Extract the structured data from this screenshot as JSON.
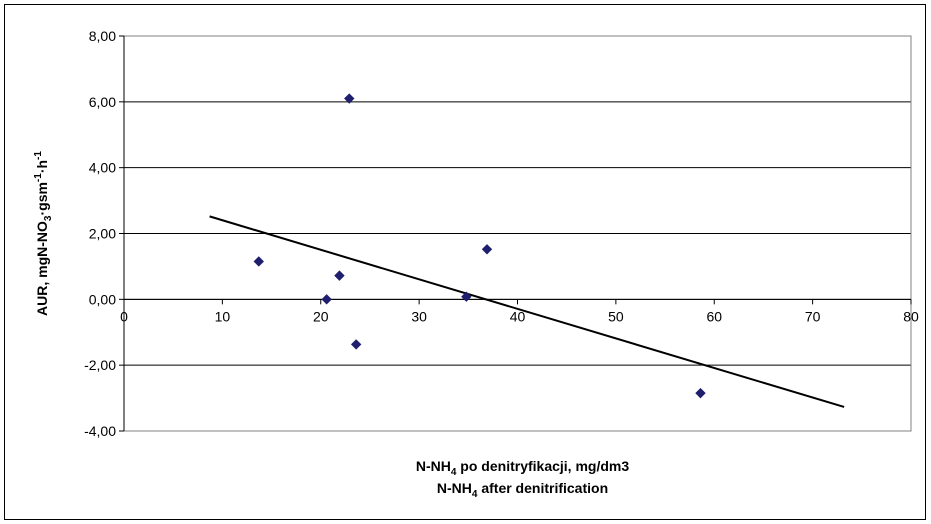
{
  "chart_data": {
    "type": "scatter",
    "title": "",
    "xlabel": {
      "line1": {
        "prefix": "N-NH",
        "sub": "4",
        "suffix": " po denitryfikacji, mg/dm3"
      },
      "line2": {
        "prefix": "N-NH",
        "sub": "4",
        "suffix": " after denitrification"
      }
    },
    "ylabel": {
      "parts": [
        {
          "t": "AUR, mgN-NO",
          "k": "n"
        },
        {
          "t": "3",
          "k": "sub"
        },
        {
          "t": "·gsm",
          "k": "n"
        },
        {
          "t": "-1",
          "k": "sup"
        },
        {
          "t": "·h",
          "k": "n"
        },
        {
          "t": "-1",
          "k": "sup"
        }
      ]
    },
    "xlim": [
      0,
      80
    ],
    "ylim": [
      -4,
      8
    ],
    "x_ticks": [
      0,
      10,
      20,
      30,
      40,
      50,
      60,
      70,
      80
    ],
    "x_tick_labels": [
      "0",
      "10",
      "20",
      "30",
      "40",
      "50",
      "60",
      "70",
      "80"
    ],
    "y_ticks": [
      -4,
      -2,
      0,
      2,
      4,
      6,
      8
    ],
    "y_tick_labels": [
      "-4,00",
      "-2,00",
      "0,00",
      "2,00",
      "4,00",
      "6,00",
      "8,00"
    ],
    "grid": "horizontal",
    "series": [
      {
        "marker": "diamond",
        "color": "#1f1f6e",
        "points": [
          {
            "x": 13.7,
            "y": 1.15
          },
          {
            "x": 20.6,
            "y": 0.0
          },
          {
            "x": 21.9,
            "y": 0.72
          },
          {
            "x": 22.9,
            "y": 6.1
          },
          {
            "x": 23.6,
            "y": -1.37
          },
          {
            "x": 34.8,
            "y": 0.08
          },
          {
            "x": 36.9,
            "y": 1.52
          },
          {
            "x": 58.6,
            "y": -2.85
          }
        ]
      }
    ],
    "trendline": {
      "color": "#000000",
      "x": [
        8.7,
        73.2
      ],
      "y": [
        2.52,
        -3.27
      ]
    }
  }
}
